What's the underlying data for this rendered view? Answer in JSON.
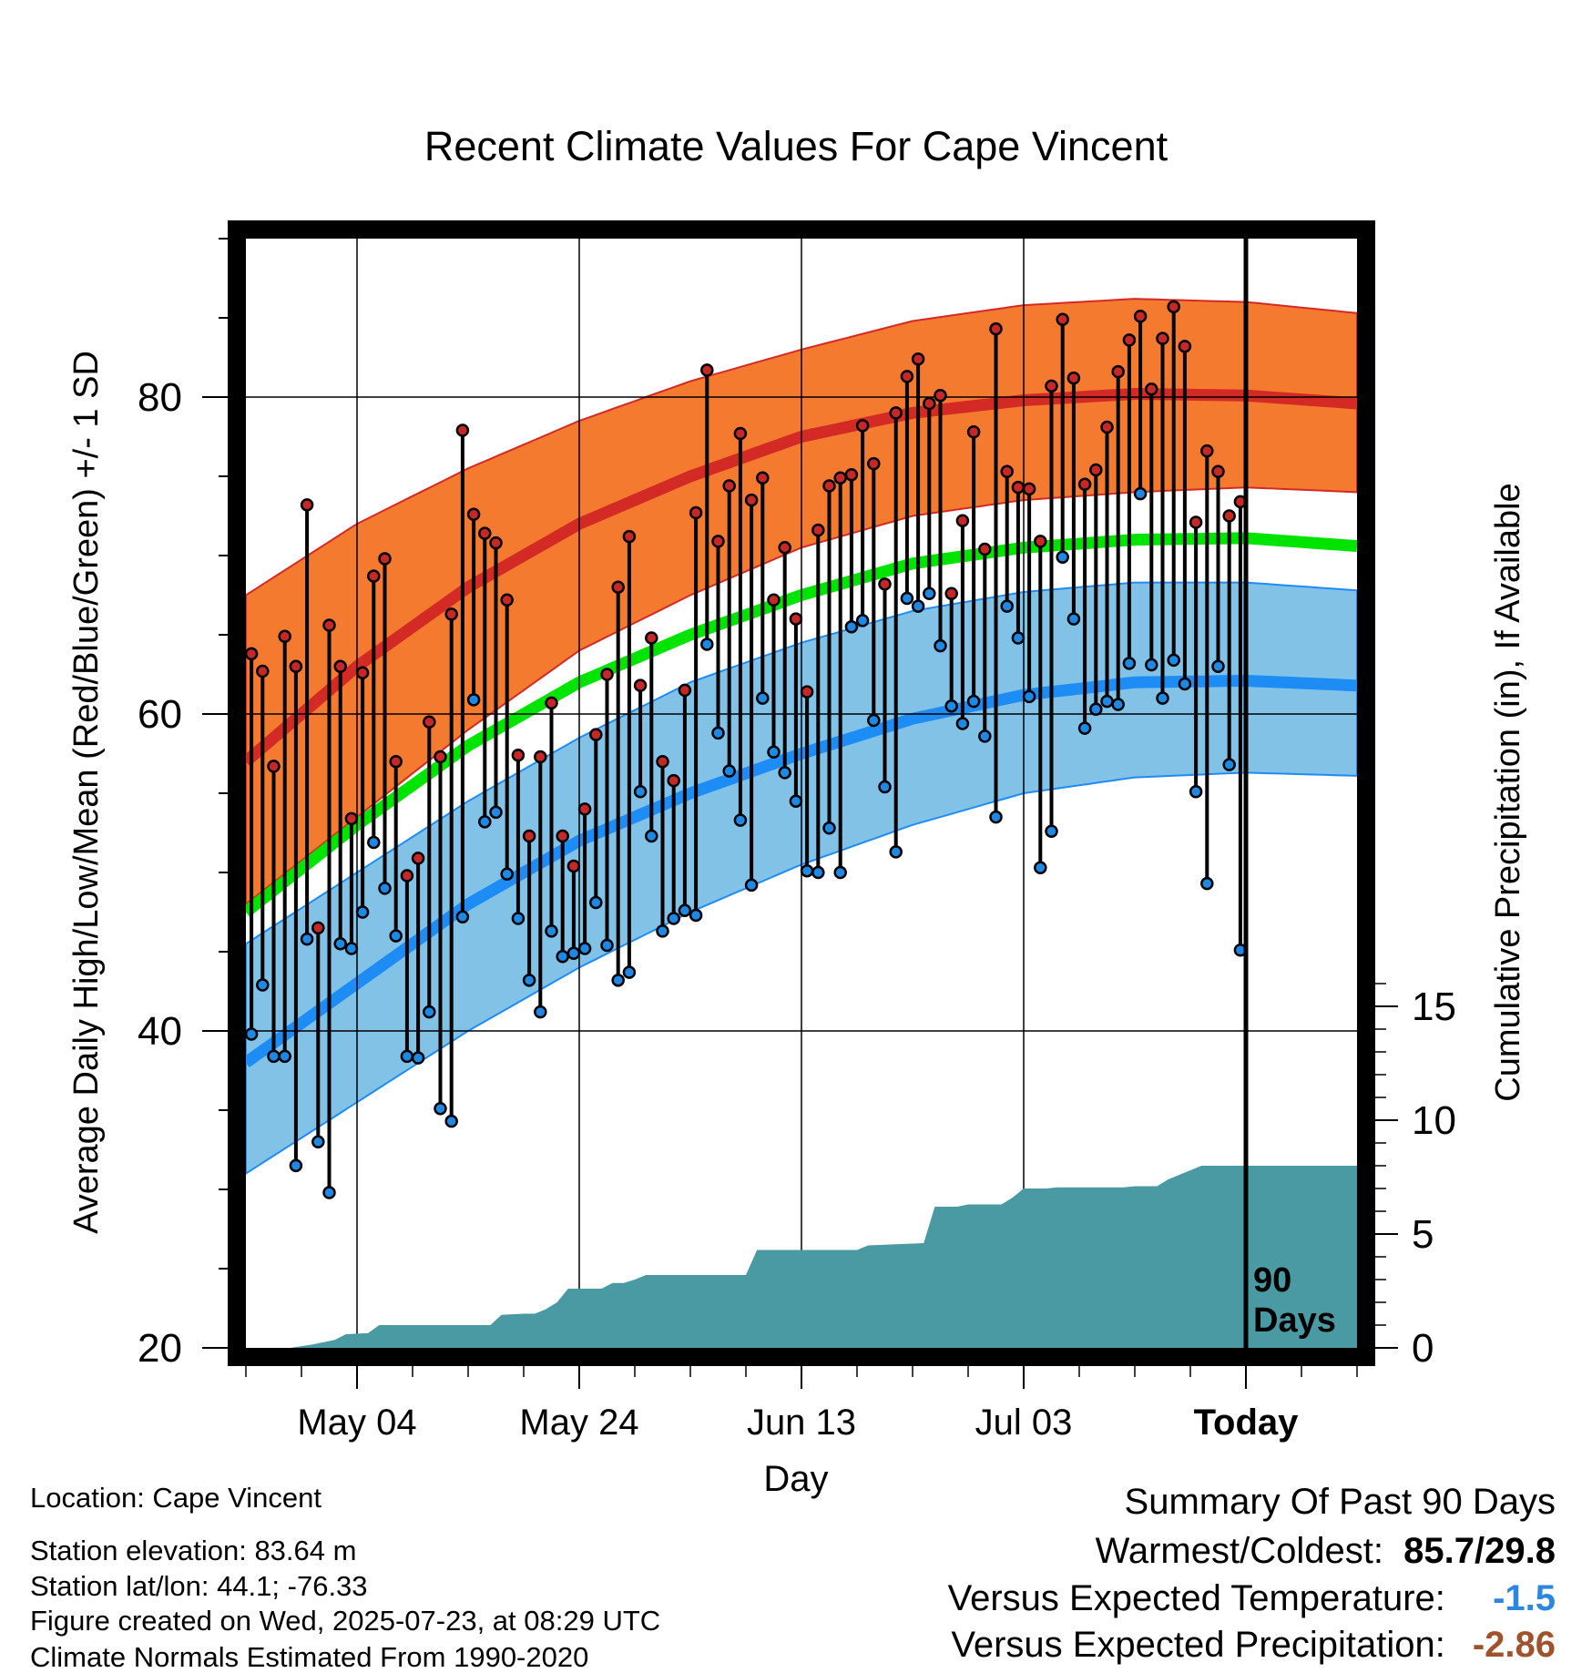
{
  "chart_data": {
    "type": "line",
    "title": "Recent Climate Values For Cape Vincent",
    "xlabel": "Day",
    "ylabel": "Average Daily High/Low/Mean (Red/Blue/Green) +/- 1 SD",
    "y2label": "Cumulative Precipitation (in), If Available",
    "ylim": [
      20,
      90
    ],
    "y2lim": [
      0,
      20
    ],
    "yticks": [
      "20",
      "40",
      "60",
      "80"
    ],
    "y2ticks": [
      "0",
      "5",
      "10",
      "15"
    ],
    "xlim": [
      -10,
      90
    ],
    "xticks": [
      {
        "day": 0,
        "label": "May 04"
      },
      {
        "day": 20,
        "label": "May 24"
      },
      {
        "day": 40,
        "label": "Jun 13"
      },
      {
        "day": 60,
        "label": "Jul 03"
      },
      {
        "day": 80,
        "label": "Today"
      }
    ],
    "today_marker": {
      "day": 80,
      "label_line1": "90",
      "label_line2": "Days"
    },
    "colors": {
      "high_band": "#f47a30",
      "high_line": "#d42a25",
      "low_band": "#82c2e7",
      "low_line": "#1e8cf5",
      "mean_line": "#00e400",
      "precip": "#4a9aa3",
      "high_dot": "#c62828",
      "low_dot": "#1e88e5"
    },
    "normals": {
      "days": [
        -10,
        0,
        10,
        20,
        30,
        40,
        50,
        60,
        70,
        80,
        90
      ],
      "high_mean": [
        57.0,
        63.0,
        68.0,
        72.0,
        75.0,
        77.5,
        79.0,
        79.8,
        80.2,
        80.1,
        79.6
      ],
      "high_upper": [
        67.5,
        72.0,
        75.5,
        78.5,
        81.0,
        83.0,
        84.8,
        85.8,
        86.2,
        86.0,
        85.3
      ],
      "high_lower": [
        48.0,
        53.5,
        59.0,
        64.0,
        67.5,
        70.5,
        72.5,
        73.5,
        74.0,
        74.3,
        74.0
      ],
      "mean": [
        47.5,
        53.0,
        58.0,
        62.0,
        65.0,
        67.5,
        69.5,
        70.5,
        71.0,
        71.1,
        70.6
      ],
      "low_mean": [
        38.0,
        43.0,
        48.0,
        52.0,
        55.0,
        57.5,
        59.7,
        61.2,
        62.0,
        62.1,
        61.8
      ],
      "low_upper": [
        45.5,
        50.0,
        54.5,
        58.5,
        62.0,
        64.5,
        66.5,
        67.7,
        68.3,
        68.3,
        67.8
      ],
      "low_lower": [
        31.0,
        35.5,
        40.0,
        44.0,
        47.5,
        50.5,
        53.0,
        55.0,
        56.0,
        56.3,
        56.1
      ]
    },
    "series": [
      {
        "name": "High",
        "start_day": -10,
        "values": [
          63.8,
          62.7,
          56.7,
          64.9,
          63.0,
          73.2,
          46.5,
          65.6,
          63.0,
          53.4,
          62.6,
          68.7,
          69.8,
          57.0,
          49.8,
          50.9,
          59.5,
          57.3,
          66.3,
          77.9,
          72.6,
          71.4,
          70.8,
          67.2,
          57.4,
          52.3,
          57.3,
          60.7,
          52.3,
          50.4,
          54.0,
          58.7,
          62.5,
          68.0,
          71.2,
          61.8,
          64.8,
          57.0,
          55.8,
          61.5,
          72.7,
          81.7,
          70.9,
          74.4,
          77.7,
          73.5,
          74.9,
          67.2,
          70.5,
          66.0,
          61.4,
          71.6,
          74.4,
          74.9,
          75.1,
          78.2,
          75.8,
          68.2,
          79.0,
          81.3,
          82.4,
          79.6,
          80.1,
          67.6,
          72.2,
          77.8,
          70.4,
          84.3,
          75.3,
          74.3,
          74.2,
          70.9,
          80.7,
          84.9,
          81.2,
          74.5,
          75.4,
          78.1,
          81.6,
          83.6,
          85.1,
          80.5,
          83.7,
          85.7,
          83.2,
          72.1,
          76.6,
          75.3,
          72.5,
          73.4
        ]
      },
      {
        "name": "Low",
        "start_day": -10,
        "values": [
          39.8,
          42.9,
          38.4,
          38.4,
          31.5,
          45.8,
          33.0,
          29.8,
          45.5,
          45.2,
          47.5,
          51.9,
          49.0,
          46.0,
          38.4,
          38.3,
          41.2,
          35.1,
          34.3,
          47.2,
          60.9,
          53.2,
          53.8,
          49.9,
          47.1,
          43.2,
          41.2,
          46.3,
          44.7,
          44.9,
          45.2,
          48.1,
          45.4,
          43.2,
          43.7,
          55.1,
          52.3,
          46.3,
          47.1,
          47.6,
          47.3,
          64.4,
          58.8,
          56.4,
          53.3,
          49.2,
          61.0,
          57.6,
          56.3,
          54.5,
          50.1,
          50.0,
          52.8,
          50.0,
          65.5,
          65.9,
          59.6,
          55.4,
          51.3,
          67.3,
          66.8,
          67.6,
          64.3,
          60.5,
          59.4,
          60.8,
          58.6,
          53.5,
          66.8,
          64.8,
          61.1,
          50.3,
          52.6,
          69.9,
          66.0,
          59.1,
          60.3,
          60.8,
          60.6,
          63.2,
          73.9,
          63.1,
          61.0,
          63.4,
          61.9,
          55.1,
          49.3,
          63.0,
          56.8,
          45.1
        ]
      },
      {
        "name": "Cumulative Precipitation",
        "axis": "right",
        "x": [
          -10,
          -6,
          -4,
          -2,
          -1,
          1,
          2,
          12,
          13,
          15,
          16,
          17,
          18,
          19,
          22,
          23,
          24,
          25,
          26,
          27,
          35,
          36,
          45,
          46,
          51,
          52,
          54,
          55,
          58,
          59,
          60,
          61,
          62,
          63,
          65,
          66,
          69,
          70,
          72,
          73,
          74,
          75,
          76,
          90
        ],
        "values": [
          0.0,
          0.0,
          0.15,
          0.35,
          0.6,
          0.65,
          1.0,
          1.0,
          1.45,
          1.5,
          1.5,
          1.7,
          2.0,
          2.6,
          2.6,
          2.85,
          2.85,
          3.0,
          3.2,
          3.2,
          3.2,
          4.3,
          4.3,
          4.5,
          4.6,
          6.2,
          6.2,
          6.3,
          6.3,
          6.6,
          7.0,
          7.0,
          7.0,
          7.05,
          7.05,
          7.05,
          7.05,
          7.1,
          7.1,
          7.4,
          7.6,
          7.8,
          8.0,
          8.0
        ]
      }
    ]
  },
  "location_info": {
    "location": "Location: Cape Vincent",
    "elevation": "Station elevation: 83.64 m",
    "latlon": "Station lat/lon: 44.1; -76.33",
    "created": "Figure created on Wed, 2025-07-23, at 08:29 UTC",
    "normals": "Climate Normals Estimated From 1990-2020"
  },
  "summary": {
    "heading": "Summary Of Past 90 Days",
    "warmest_coldest_label": "Warmest/Coldest:",
    "warmest_coldest_value": "85.7/29.8",
    "temp_label": "Versus Expected Temperature:",
    "temp_value": "-1.5",
    "temp_color": "#2c87e0",
    "precip_label": "Versus Expected Precipitation:",
    "precip_value": "-2.86",
    "precip_color": "#a0522d"
  }
}
